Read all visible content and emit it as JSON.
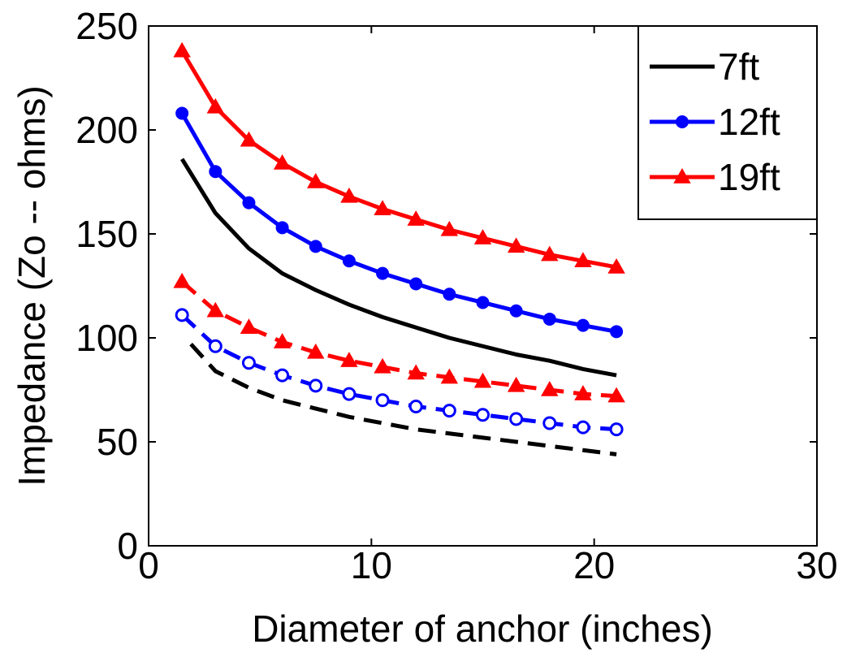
{
  "chart_data": {
    "type": "line",
    "title": "",
    "xlabel": "Diameter of anchor (inches)",
    "ylabel": "Impedance (Zo -- ohms)",
    "xlim": [
      0,
      30
    ],
    "ylim": [
      0,
      250
    ],
    "xticks": [
      0,
      10,
      20,
      30
    ],
    "yticks": [
      0,
      50,
      100,
      150,
      200,
      250
    ],
    "grid": false,
    "legend_position": "top-right",
    "x": [
      1.5,
      3,
      4.5,
      6,
      7.5,
      9,
      10.5,
      12,
      13.5,
      15,
      16.5,
      18,
      19.5,
      21
    ],
    "series": [
      {
        "name": "7ft",
        "color": "#000000",
        "marker": "none",
        "linestyle": "solid",
        "values": [
          186,
          160,
          143,
          131,
          123,
          116,
          110,
          105,
          100,
          96,
          92,
          89,
          85,
          82
        ]
      },
      {
        "name": "12ft",
        "color": "#0000ff",
        "marker": "circle-filled",
        "linestyle": "solid",
        "values": [
          208,
          180,
          165,
          153,
          144,
          137,
          131,
          126,
          121,
          117,
          113,
          109,
          106,
          103
        ]
      },
      {
        "name": "19ft",
        "color": "#ff0000",
        "marker": "triangle-filled",
        "linestyle": "solid",
        "values": [
          238,
          211,
          195,
          184,
          175,
          168,
          162,
          157,
          152,
          148,
          144,
          140,
          137,
          134
        ]
      },
      {
        "color": "#000000",
        "marker": "none",
        "linestyle": "dashed",
        "show_in_legend": false,
        "values": [
          97,
          84,
          76,
          70,
          66,
          62,
          59,
          56,
          54,
          52,
          50,
          48,
          46,
          44
        ]
      },
      {
        "color": "#0000ff",
        "marker": "circle-open",
        "linestyle": "dashed",
        "show_in_legend": false,
        "values": [
          111,
          96,
          88,
          82,
          77,
          73,
          70,
          67,
          65,
          63,
          61,
          59,
          57,
          56
        ]
      },
      {
        "color": "#ff0000",
        "marker": "triangle-filled",
        "linestyle": "dashed",
        "show_in_legend": false,
        "values": [
          127,
          113,
          105,
          98,
          93,
          89,
          86,
          83,
          81,
          79,
          77,
          75,
          73,
          72
        ]
      }
    ]
  }
}
